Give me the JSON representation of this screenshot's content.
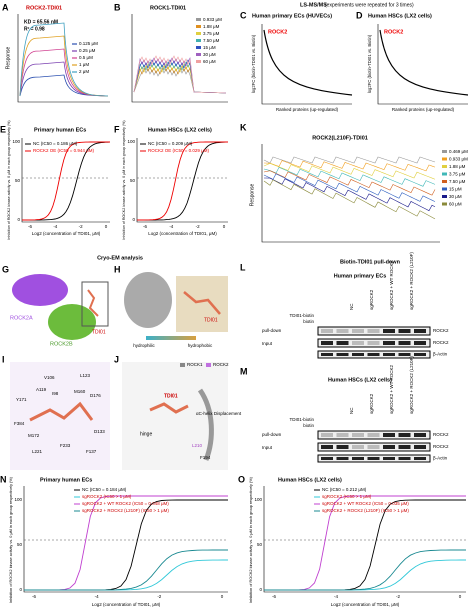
{
  "header": {
    "title": "LS-MS/MS",
    "subtitle": "(experiments were repeated for 3 times)",
    "cryo": "Cryo-EM analysis",
    "pulldown": "Biotin-TDI01 pull-down"
  },
  "panels": {
    "A": {
      "letter": "A",
      "title": "ROCK2-TDI01",
      "stats": [
        "KD = 65.56 nM",
        "R² = 0.98"
      ],
      "legend": [
        "0.125 μM",
        "0.25 μM",
        "0.5 μM",
        "1 μM",
        "2 μM"
      ],
      "ylabel": "Response"
    },
    "B": {
      "letter": "B",
      "title": "ROCK1-TDI01",
      "legend": [
        "0.933 μM",
        "1.88 μM",
        "3.75 μM",
        "7.50 μM",
        "15 μM",
        "30 μM",
        "60 μM"
      ]
    },
    "C": {
      "letter": "C",
      "title": "Human primary ECs (HUVECs)",
      "highlight": "ROCK2",
      "ylabel": "log2FC (biotin-TDI01 vs. Biotin)",
      "xlabel": "Ranked proteins (up-regulated)"
    },
    "D": {
      "letter": "D",
      "title": "Human HSCs (LX2 cells)",
      "highlight": "ROCK2",
      "ylabel": "log2FC (biotin-TDI01 vs. Biotin)",
      "xlabel": "Ranked proteins (up-regulated)"
    },
    "E": {
      "letter": "E",
      "title": "Primary human ECs",
      "legend": [
        "NC (IC50 = 0.186 μM)",
        "ROCK2 OE (IC50 = 0.944 μM)"
      ],
      "ylabel": "Inhibition of ROCK2 kinase activity vs. 0 μM in each group respectively (%)",
      "xlabel": "Log2 (concentration of TDI01, μM)",
      "xticks": [
        "-6",
        "-4",
        "-2",
        "0"
      ],
      "yticks": [
        "0",
        "50",
        "100"
      ]
    },
    "F": {
      "letter": "F",
      "title": "Human HSCs (LX2 cells)",
      "legend": [
        "NC (IC50 = 0.209 μM)",
        "ROCK2 OE (IC50 = 0.029 μM)"
      ],
      "ylabel": "Inhibition of ROCK2 kinase activity vs. 0 μM in each group respectively (%)",
      "xlabel": "Log2 (concentration of TDI01, μM)",
      "xticks": [
        "-6",
        "-4",
        "-2",
        "0"
      ],
      "yticks": [
        "0",
        "50",
        "100"
      ]
    },
    "K": {
      "letter": "K",
      "title": "ROCK2(L210F)-TDI01",
      "legend": [
        "0.469 μM",
        "0.933 μM",
        "1.88 μM",
        "3.75 μM",
        "7.50 μM",
        "15 μM",
        "30 μM",
        "60 μM"
      ],
      "ylabel": "Response"
    },
    "G": {
      "letter": "G",
      "labels": [
        "ROCK2A",
        "ROCK2B",
        "TDI01"
      ]
    },
    "H": {
      "letter": "H",
      "labels": [
        "TDI01",
        "hydrophilic",
        "hydrophobic"
      ]
    },
    "I": {
      "letter": "I",
      "labels": [
        "V106",
        "A119",
        "I98",
        "L123",
        "M160",
        "D176",
        "Y171",
        "F384",
        "M172",
        "L221",
        "F233",
        "D133",
        "F137"
      ]
    },
    "J": {
      "letter": "J",
      "legend": [
        "ROCK1",
        "ROCK2"
      ],
      "labels": [
        "TDI01",
        "hinge",
        "αC-helix Displacement",
        "L210",
        "F194"
      ]
    },
    "L": {
      "letter": "L",
      "title": "Human primary ECs",
      "lanes": [
        "NC",
        "sgROCK2",
        "sgROCK2 + WT ROCK2",
        "sgROCK2 + ROCK2 (L210F)"
      ],
      "rows": [
        "TDI01-biotin",
        "biotin",
        "pull-down",
        "Input"
      ],
      "bands": [
        "ROCK2",
        "ROCK2",
        "β-Actin"
      ]
    },
    "M": {
      "letter": "M",
      "title": "Human HSCs (LX2 cells)",
      "lanes": [
        "NC",
        "sgROCK2",
        "sgROCK2 + WT ROCK2",
        "sgROCK2 + ROCK2 (L210F)"
      ],
      "rows": [
        "TDI01-biotin",
        "biotin",
        "pull-down",
        "Input"
      ],
      "bands": [
        "ROCK2",
        "ROCK2",
        "β-Actin"
      ]
    },
    "N": {
      "letter": "N",
      "title": "Primary human ECs",
      "legend": [
        "NC (IC50 = 0.184 μM)",
        "sgROCK2 (IC50 > 1 μM)",
        "sgROCK2 + WT ROCK2 (IC50 = 0.048 μM)",
        "sgROCK2 + ROCK2 (L210F) (IC50 > 1 μM)"
      ],
      "ylabel": "Inhibition of ROCK2 kinase activity vs. 0 μM in each group respectively (%)",
      "xlabel": "Log2 (concentration of TDI01, μM)",
      "xticks": [
        "-6",
        "-4",
        "-2",
        "0"
      ],
      "yticks": [
        "0",
        "50",
        "100"
      ]
    },
    "O": {
      "letter": "O",
      "title": "Human HSCs (LX2 cells)",
      "legend": [
        "NC (IC50 = 0.212 μM)",
        "sgROCK2 (IC50 > 1 μM)",
        "sgROCK2 + WT ROCK2 (IC50 = 0.035 μM)",
        "sgROCK2 + ROCK2 (L210F) (IC50 > 1 μM)"
      ],
      "ylabel": "Inhibition of ROCK2 kinase activity vs. 0 μM in each group respectively (%)",
      "xlabel": "Log2 (concentration of TDI01, μM)",
      "xticks": [
        "-6",
        "-4",
        "-2",
        "0"
      ],
      "yticks": [
        "0",
        "50",
        "100"
      ]
    }
  }
}
